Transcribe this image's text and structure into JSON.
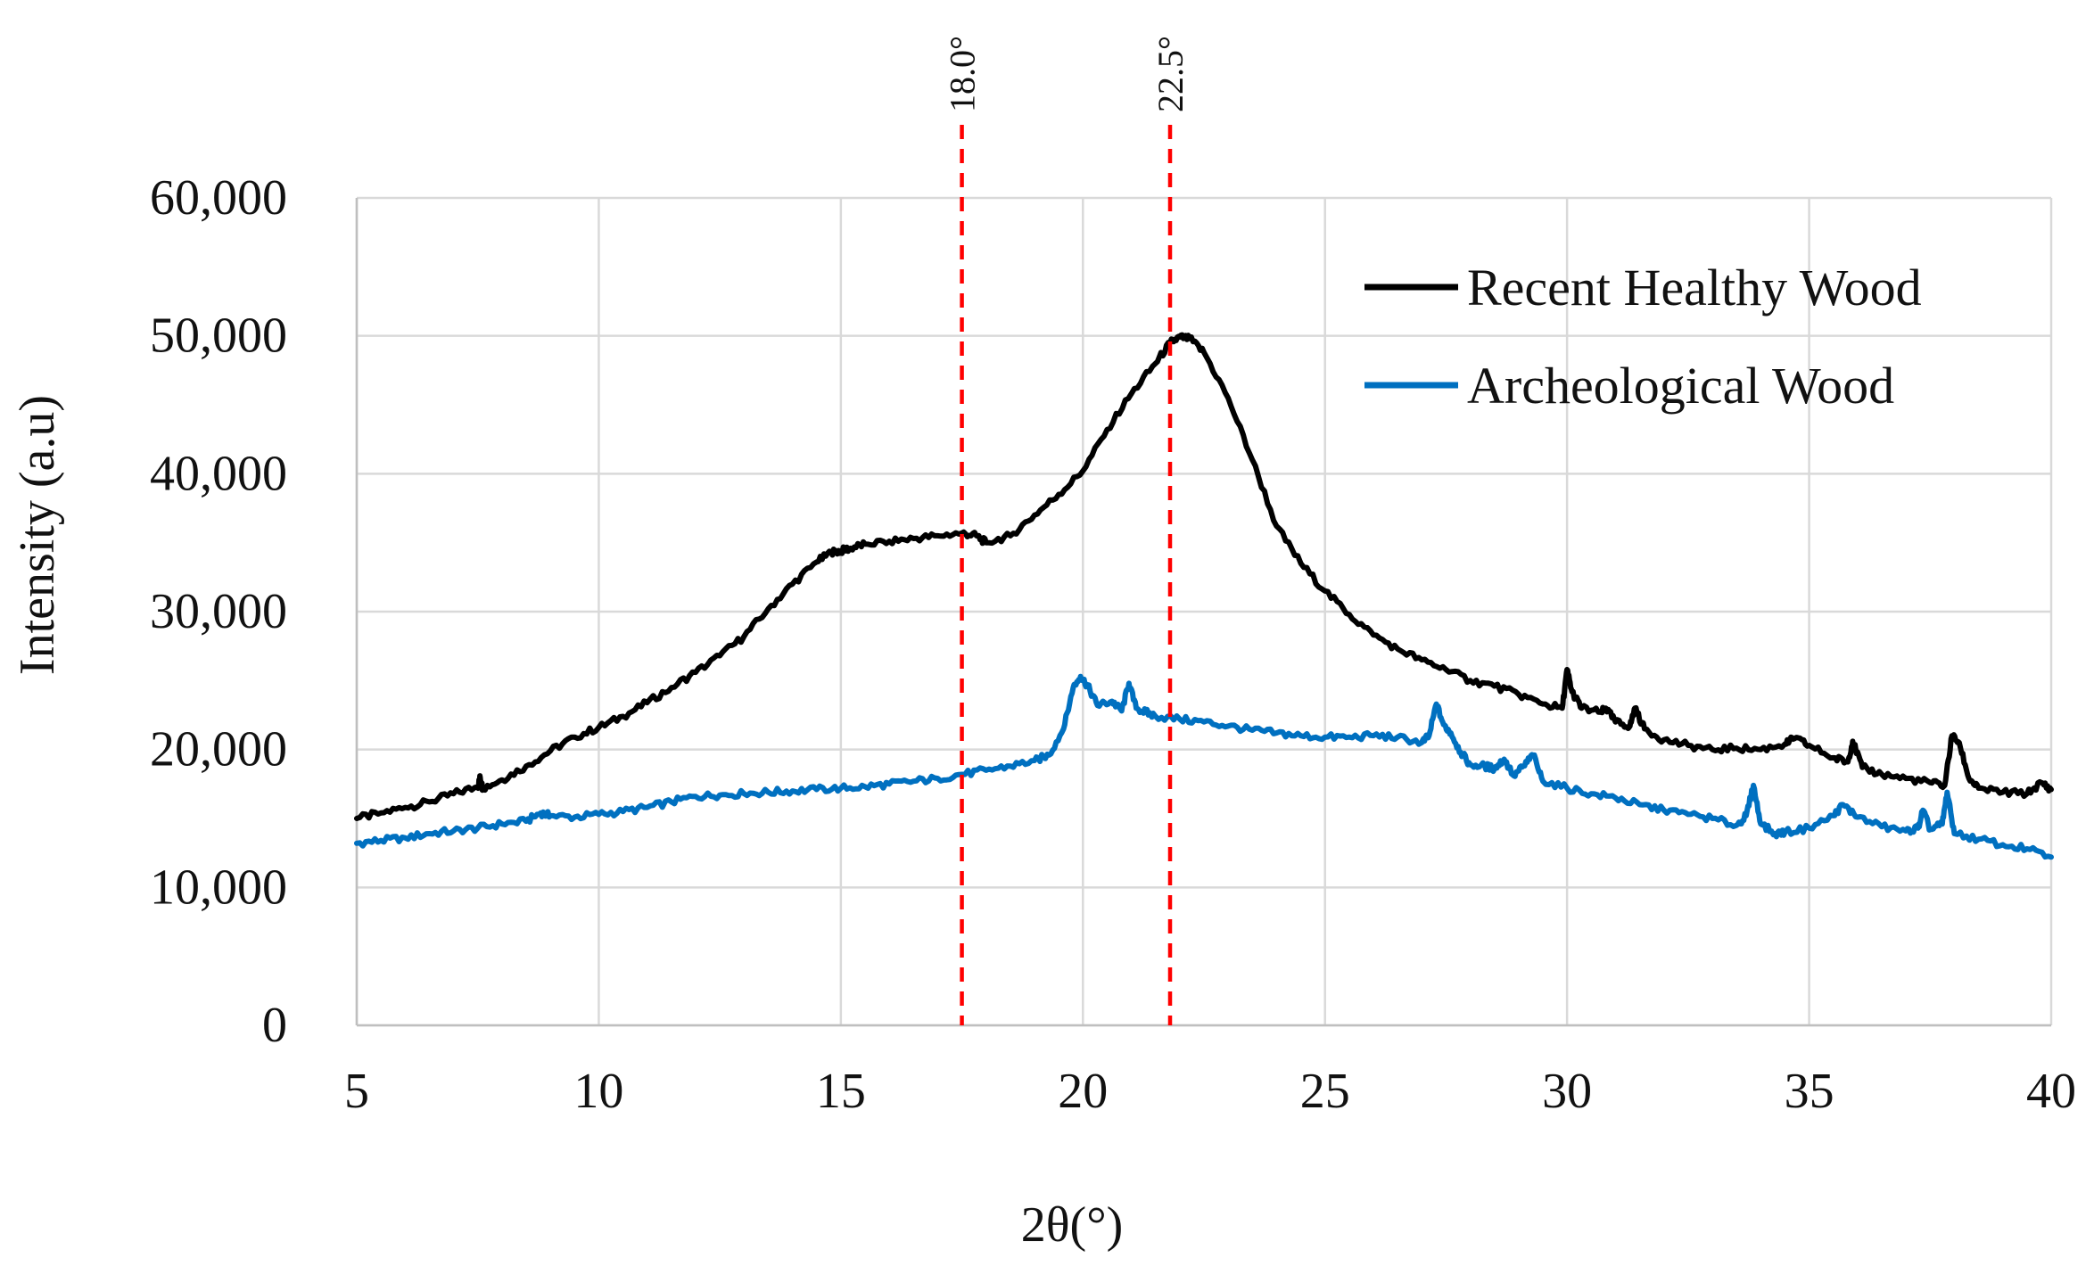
{
  "chart_data": {
    "type": "line",
    "title": "",
    "xlabel": "2θ(°)",
    "ylabel": "Intensity (a.u)",
    "xlim": [
      5,
      40
    ],
    "ylim": [
      0,
      60000
    ],
    "x_ticks": [
      5,
      10,
      15,
      20,
      25,
      30,
      35,
      40
    ],
    "y_ticks": [
      0,
      10000,
      20000,
      30000,
      40000,
      50000,
      60000
    ],
    "y_tick_labels": [
      "0",
      "10,000",
      "20,000",
      "30,000",
      "40,000",
      "50,000",
      "60,000"
    ],
    "grid": true,
    "legend_position": "top-right",
    "series": [
      {
        "name": "Recent Healthy Wood",
        "color": "#000000",
        "x": [
          5.0,
          5.5,
          6.0,
          6.5,
          7.0,
          7.5,
          7.55,
          7.6,
          8.0,
          8.5,
          9.0,
          9.5,
          10.0,
          10.5,
          11.0,
          11.5,
          12.0,
          12.5,
          13.0,
          13.5,
          14.0,
          14.5,
          14.8,
          15.0,
          15.2,
          15.5,
          16.0,
          16.5,
          17.0,
          17.5,
          17.8,
          18.0,
          18.5,
          19.0,
          19.5,
          20.0,
          20.5,
          21.0,
          21.5,
          21.8,
          22.0,
          22.2,
          22.5,
          23.0,
          23.5,
          24.0,
          24.5,
          25.0,
          25.5,
          26.0,
          26.5,
          27.0,
          27.5,
          28.0,
          28.5,
          29.0,
          29.5,
          29.9,
          30.0,
          30.1,
          30.3,
          30.7,
          30.8,
          31.0,
          31.3,
          31.4,
          31.6,
          32.0,
          32.5,
          33.0,
          33.5,
          34.0,
          34.5,
          34.7,
          35.0,
          35.5,
          35.8,
          35.9,
          36.1,
          36.5,
          37.0,
          37.5,
          37.8,
          37.95,
          38.1,
          38.3,
          38.5,
          39.0,
          39.5,
          39.8,
          40.0
        ],
        "y": [
          15000,
          15400,
          15800,
          16200,
          16800,
          17300,
          18000,
          17200,
          17800,
          18800,
          19900,
          20900,
          21600,
          22400,
          23400,
          24500,
          25600,
          26800,
          28200,
          30200,
          32000,
          33600,
          34300,
          34400,
          34600,
          34900,
          35100,
          35300,
          35500,
          35700,
          35500,
          35000,
          35500,
          37000,
          38500,
          40200,
          43200,
          45800,
          48000,
          49500,
          49900,
          49800,
          48800,
          45500,
          41000,
          36200,
          33500,
          31500,
          29800,
          28300,
          27300,
          26500,
          25800,
          25000,
          24600,
          24000,
          23300,
          23000,
          25800,
          24200,
          23000,
          22700,
          23000,
          22000,
          21700,
          23000,
          21500,
          20700,
          20300,
          20000,
          20100,
          20000,
          20400,
          20800,
          20300,
          19400,
          19100,
          20600,
          18700,
          18200,
          17900,
          17600,
          17400,
          21000,
          20500,
          17900,
          17200,
          16900,
          16800,
          17600,
          17100
        ]
      },
      {
        "name": "Archeological Wood",
        "color": "#0070C0",
        "x": [
          5.0,
          5.5,
          6.0,
          6.5,
          7.0,
          7.5,
          8.0,
          8.5,
          8.8,
          9.0,
          9.5,
          10.0,
          10.5,
          11.0,
          11.5,
          12.0,
          12.5,
          13.0,
          13.5,
          14.0,
          14.5,
          15.0,
          15.5,
          16.0,
          16.5,
          17.0,
          17.5,
          18.0,
          18.5,
          19.0,
          19.3,
          19.6,
          19.8,
          19.95,
          20.1,
          20.3,
          20.6,
          20.8,
          20.95,
          21.1,
          21.3,
          21.5,
          22.0,
          22.5,
          23.0,
          23.5,
          24.0,
          24.5,
          25.0,
          25.5,
          26.0,
          26.5,
          27.0,
          27.15,
          27.3,
          27.45,
          27.6,
          27.8,
          28.0,
          28.3,
          28.5,
          28.7,
          28.9,
          29.1,
          29.3,
          29.5,
          30.0,
          30.5,
          31.0,
          31.5,
          32.0,
          32.5,
          33.0,
          33.5,
          33.7,
          33.85,
          34.0,
          34.3,
          34.5,
          35.0,
          35.5,
          35.7,
          36.0,
          36.5,
          37.0,
          37.25,
          37.35,
          37.5,
          37.75,
          37.85,
          38.0,
          38.5,
          39.0,
          39.5,
          40.0
        ],
        "y": [
          13200,
          13400,
          13600,
          13900,
          14100,
          14300,
          14600,
          14800,
          15400,
          15200,
          15100,
          15300,
          15500,
          15800,
          16200,
          16600,
          16700,
          16800,
          16900,
          17000,
          17100,
          17200,
          17300,
          17500,
          17700,
          17900,
          18200,
          18500,
          18800,
          19200,
          19600,
          21500,
          24500,
          25300,
          24600,
          23200,
          23500,
          22800,
          24800,
          23000,
          22700,
          22400,
          22200,
          22000,
          21700,
          21400,
          21200,
          21000,
          20900,
          20900,
          21000,
          20900,
          20500,
          21000,
          23300,
          21800,
          21200,
          19800,
          18900,
          18800,
          18600,
          19300,
          18100,
          18800,
          19600,
          17700,
          17200,
          16800,
          16500,
          16000,
          15600,
          15300,
          15000,
          14500,
          15200,
          17400,
          14600,
          13900,
          14000,
          14300,
          15200,
          16000,
          15100,
          14400,
          14100,
          14300,
          15600,
          14200,
          14600,
          16900,
          13900,
          13500,
          13100,
          12800,
          12200
        ]
      }
    ],
    "vertical_markers": [
      {
        "x": 17.5,
        "label": "18.0°",
        "color": "#FF0000"
      },
      {
        "x": 21.8,
        "label": "22.5°",
        "color": "#FF0000"
      }
    ]
  }
}
